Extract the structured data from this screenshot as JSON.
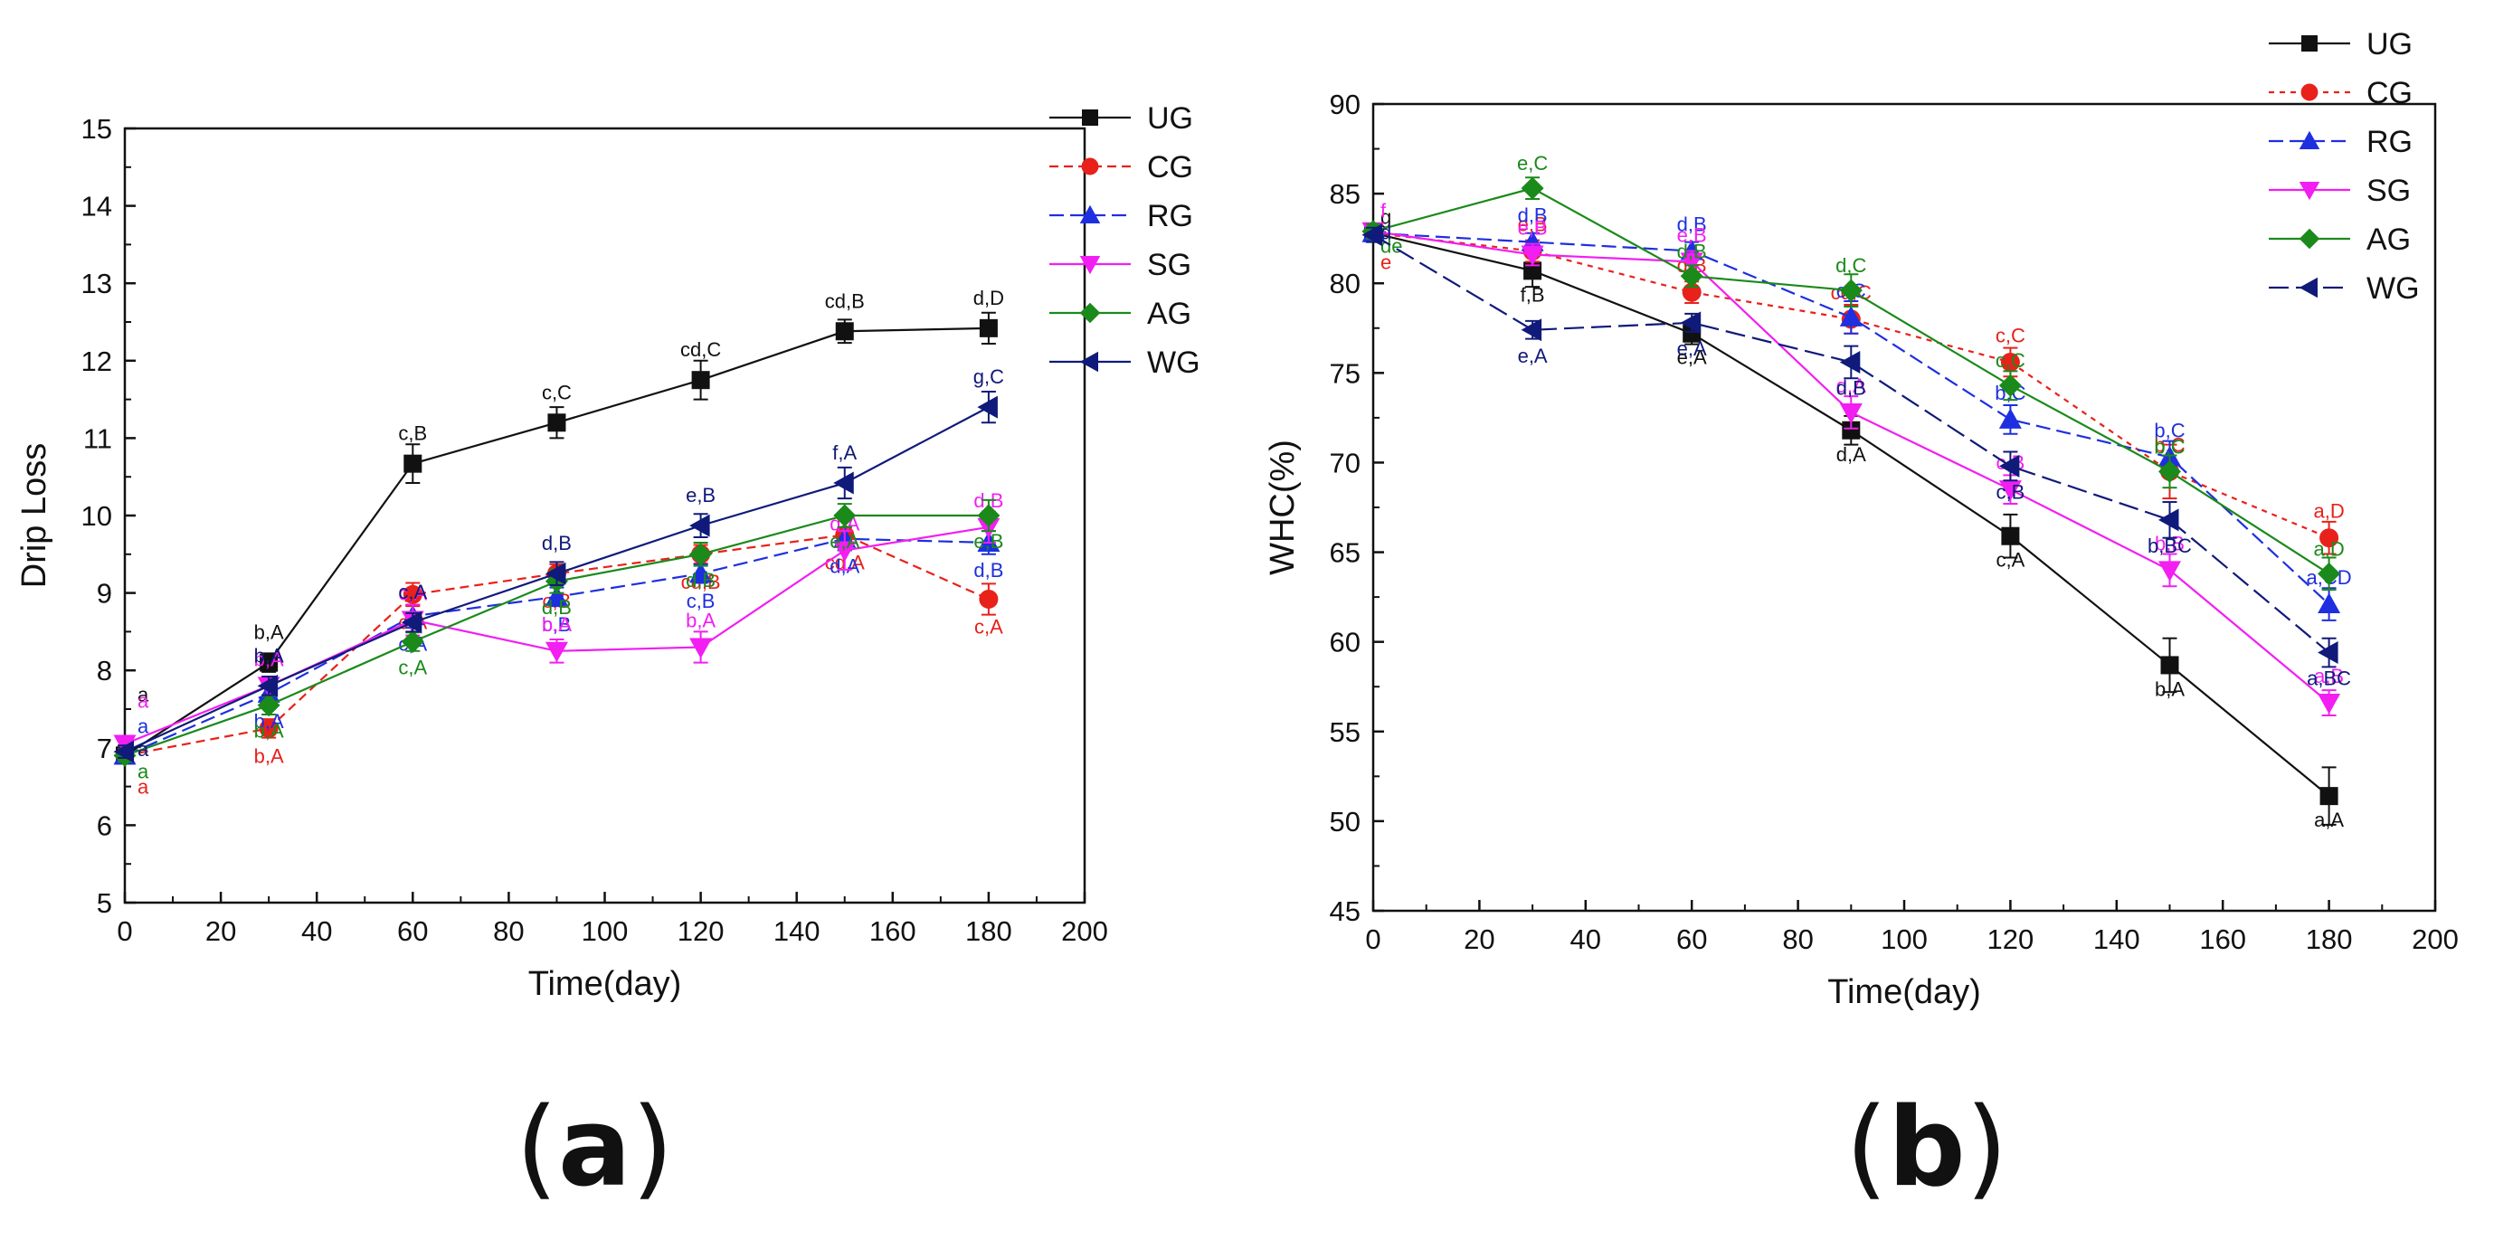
{
  "panels": {
    "a_label": "a",
    "b_label": "b"
  },
  "chart_data": [
    {
      "type": "line",
      "panel": "(a)",
      "xlabel": "Time(day)",
      "ylabel": "Drip Loss",
      "xlim": [
        0,
        200
      ],
      "ylim": [
        5,
        15
      ],
      "xticks": [
        0,
        20,
        40,
        60,
        80,
        100,
        120,
        140,
        160,
        180,
        200
      ],
      "yticks": [
        5,
        6,
        7,
        8,
        9,
        10,
        11,
        12,
        13,
        14,
        15
      ],
      "legend_position": "top-right",
      "x": [
        0,
        30,
        60,
        90,
        120,
        150,
        180
      ],
      "series": [
        {
          "name": "UG",
          "color": "#111111",
          "marker": "square",
          "dash": "",
          "values": [
            6.9,
            8.1,
            10.67,
            11.2,
            11.75,
            12.38,
            12.42
          ],
          "errors": [
            0.08,
            0.12,
            0.25,
            0.2,
            0.25,
            0.15,
            0.2
          ],
          "labels": [
            "a",
            "b,A",
            "c,B",
            "c,C",
            "cd,C",
            "cd,B",
            "d,D"
          ]
        },
        {
          "name": "CG",
          "color": "#e8211b",
          "marker": "circle",
          "dash": "10,6",
          "values": [
            6.9,
            7.25,
            8.98,
            9.25,
            9.5,
            9.75,
            8.92
          ],
          "errors": [
            0.08,
            0.12,
            0.15,
            0.12,
            0.12,
            0.2,
            0.2
          ],
          "labels": [
            "a",
            "b,A",
            "c,A",
            "c,B",
            "cd,B",
            "cd,A",
            "c,A"
          ]
        },
        {
          "name": "RG",
          "color": "#1e2fe0",
          "marker": "triangle-up",
          "dash": "16,7",
          "values": [
            6.9,
            7.7,
            8.7,
            8.95,
            9.25,
            9.7,
            9.65
          ],
          "errors": [
            0.08,
            0.12,
            0.15,
            0.12,
            0.12,
            0.15,
            0.15
          ],
          "labels": [
            "a",
            "b,A",
            "c,A",
            "c,B",
            "c,B",
            "d,A",
            "d,B"
          ]
        },
        {
          "name": "SG",
          "color": "#f21ef2",
          "marker": "triangle-down",
          "dash": "",
          "values": [
            7.05,
            7.8,
            8.65,
            8.25,
            8.3,
            9.55,
            9.85
          ],
          "errors": [
            0.08,
            0.12,
            0.2,
            0.15,
            0.2,
            0.25,
            0.2
          ],
          "labels": [
            "a",
            "b,A",
            "c,A",
            "b,A",
            "b,A",
            "d,A",
            "d,B"
          ]
        },
        {
          "name": "AG",
          "color": "#1a8a1a",
          "marker": "diamond",
          "dash": "",
          "values": [
            6.9,
            7.55,
            8.37,
            9.15,
            9.5,
            10.0,
            10.0
          ],
          "errors": [
            0.08,
            0.12,
            0.12,
            0.15,
            0.15,
            0.15,
            0.2
          ],
          "labels": [
            "a",
            "b,A",
            "c,A",
            "d,B",
            "d,B",
            "e,A",
            "e,B"
          ]
        },
        {
          "name": "WG",
          "color": "#0f1a7a",
          "marker": "triangle-left",
          "dash": "",
          "values": [
            6.95,
            7.8,
            8.62,
            9.25,
            9.87,
            10.42,
            11.4
          ],
          "errors": [
            0.08,
            0.12,
            0.12,
            0.15,
            0.15,
            0.2,
            0.2
          ],
          "labels": [
            "a",
            "b,A",
            "c,A",
            "d,B",
            "e,B",
            "f,A",
            "g,C"
          ]
        }
      ]
    },
    {
      "type": "line",
      "panel": "(b)",
      "xlabel": "Time(day)",
      "ylabel": "WHC(%)",
      "xlim": [
        0,
        200
      ],
      "ylim": [
        45,
        90
      ],
      "xticks": [
        0,
        20,
        40,
        60,
        80,
        100,
        120,
        140,
        160,
        180,
        200
      ],
      "yticks": [
        45,
        50,
        55,
        60,
        65,
        70,
        75,
        80,
        85,
        90
      ],
      "legend_position": "top-right",
      "x": [
        0,
        30,
        60,
        90,
        120,
        150,
        180
      ],
      "series": [
        {
          "name": "UG",
          "color": "#111111",
          "marker": "square",
          "dash": "",
          "values": [
            82.8,
            80.7,
            77.2,
            71.8,
            65.9,
            58.7,
            51.4
          ],
          "errors": [
            0.4,
            0.9,
            0.6,
            0.8,
            1.2,
            1.5,
            1.6
          ],
          "labels": [
            "g",
            "f,B",
            "e,A",
            "d,A",
            "c,A",
            "b,A",
            "a,A"
          ]
        },
        {
          "name": "CG",
          "color": "#e8211b",
          "marker": "circle",
          "dash": "6,6",
          "values": [
            82.8,
            81.8,
            79.5,
            78.0,
            75.6,
            69.5,
            65.8
          ],
          "errors": [
            0.4,
            0.6,
            0.6,
            0.8,
            0.8,
            1.5,
            0.9
          ],
          "labels": [
            "e",
            "e,B",
            "d,B",
            "cd,C",
            "c,C",
            "b,C",
            "a,D"
          ]
        },
        {
          "name": "RG",
          "color": "#1e2fe0",
          "marker": "triangle-up",
          "dash": "16,7",
          "values": [
            82.8,
            82.3,
            81.8,
            78.1,
            72.4,
            70.3,
            62.1
          ],
          "errors": [
            0.4,
            0.5,
            0.5,
            0.9,
            0.8,
            0.9,
            0.9
          ],
          "labels": [
            "f",
            "d,B",
            "d,B",
            "c,C",
            "b,C",
            "b,C",
            "a,CD"
          ]
        },
        {
          "name": "SG",
          "color": "#f21ef2",
          "marker": "triangle-down",
          "dash": "",
          "values": [
            82.9,
            81.6,
            81.2,
            72.8,
            68.5,
            64.0,
            56.6
          ],
          "errors": [
            0.4,
            0.6,
            0.6,
            0.9,
            0.8,
            0.9,
            0.7
          ],
          "labels": [
            "f",
            "e,B",
            "e,B",
            "d,A",
            "c,B",
            "b,B",
            "a,B"
          ]
        },
        {
          "name": "AG",
          "color": "#1a8a1a",
          "marker": "diamond",
          "dash": "",
          "values": [
            82.9,
            85.3,
            80.4,
            79.6,
            74.3,
            69.5,
            63.8
          ],
          "errors": [
            0.4,
            0.6,
            0.6,
            0.9,
            0.8,
            0.9,
            0.9
          ],
          "labels": [
            "de",
            "e,C",
            "d,B",
            "d,C",
            "c,C",
            "b,C",
            "a,D"
          ]
        },
        {
          "name": "WG",
          "color": "#0f1a7a",
          "marker": "triangle-left",
          "dash": "22,8",
          "values": [
            82.7,
            77.4,
            77.8,
            75.6,
            69.8,
            66.8,
            59.4
          ],
          "errors": [
            0.4,
            0.5,
            0.5,
            0.9,
            0.8,
            1.0,
            0.8
          ],
          "labels": [
            "d",
            "e,A",
            "e,A",
            "d,B",
            "c,B",
            "b,BC",
            "a,BC"
          ]
        }
      ]
    }
  ]
}
